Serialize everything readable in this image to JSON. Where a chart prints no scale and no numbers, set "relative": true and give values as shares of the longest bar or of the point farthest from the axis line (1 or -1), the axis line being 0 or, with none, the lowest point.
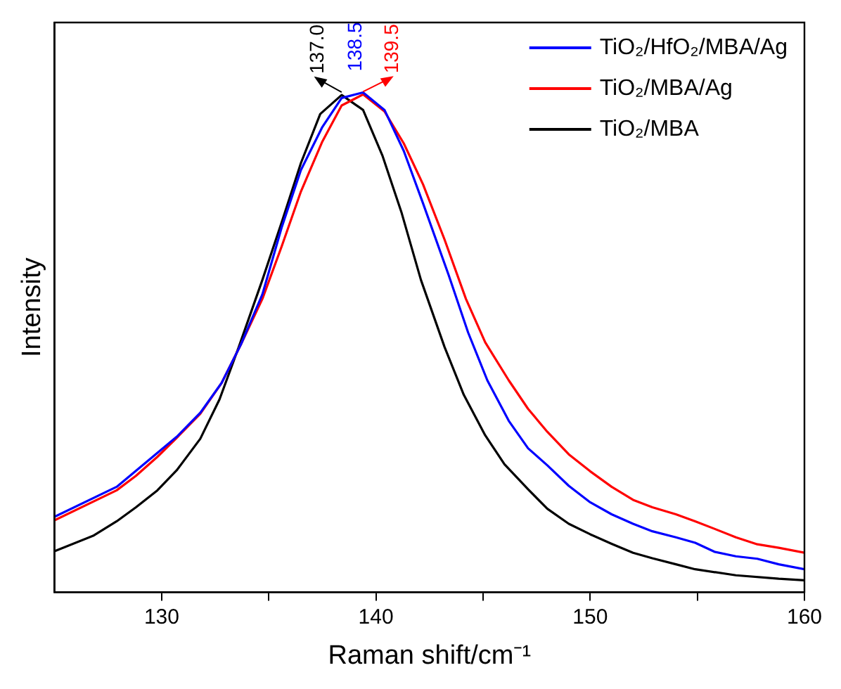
{
  "chart_data": {
    "type": "line",
    "relative": true,
    "xlabel": "Raman shift/cm⁻¹",
    "ylabel": "Intensity",
    "xlim": [
      125,
      160
    ],
    "xticks": [
      {
        "value": 135,
        "label": null
      },
      130,
      140,
      150,
      160,
      {
        "value": 145,
        "label": null
      },
      {
        "value": 155,
        "label": null
      }
    ],
    "grid": false,
    "legend": "top right",
    "marker": "none",
    "line_style": "solid",
    "annotations": [
      "138.5",
      "139.5",
      "137.0"
    ],
    "series": [
      {
        "name": "TiO₂/HfO₂/MBA/Ag",
        "color": "#0000ff",
        "x": [
          125,
          127.9,
          130.7,
          131.8,
          132.8,
          133.7,
          134.7,
          135.6,
          136.5,
          137.5,
          138.4,
          139.4,
          140.4,
          141.3,
          142.2,
          143.4,
          144.3,
          145.2,
          146.2,
          147.1,
          148.0,
          149.0,
          150.0,
          151.0,
          152.0,
          152.9,
          154.0,
          154.9,
          155.8,
          156.8,
          157.8,
          158.8,
          160
        ],
        "values": [
          0.151,
          0.211,
          0.311,
          0.359,
          0.419,
          0.496,
          0.596,
          0.73,
          0.845,
          0.931,
          0.989,
          1.0,
          0.965,
          0.883,
          0.778,
          0.634,
          0.52,
          0.424,
          0.343,
          0.288,
          0.254,
          0.213,
          0.18,
          0.156,
          0.137,
          0.122,
          0.11,
          0.099,
          0.081,
          0.072,
          0.067,
          0.056,
          0.046
        ]
      },
      {
        "name": "TiO₂/MBA/Ag",
        "color": "#ff0000",
        "x": [
          125,
          127.9,
          128.8,
          129.8,
          130.7,
          131.8,
          132.8,
          133.7,
          134.7,
          135.6,
          136.5,
          137.5,
          138.4,
          139.4,
          140.4,
          141.3,
          142.2,
          143.2,
          144.2,
          145.1,
          146.2,
          147.1,
          148.0,
          149.0,
          150.0,
          151.0,
          152.0,
          152.9,
          154.0,
          154.9,
          155.8,
          156.8,
          157.8,
          158.8,
          160
        ],
        "values": [
          0.144,
          0.204,
          0.233,
          0.271,
          0.309,
          0.357,
          0.419,
          0.496,
          0.587,
          0.692,
          0.802,
          0.902,
          0.974,
          0.996,
          0.962,
          0.898,
          0.816,
          0.706,
          0.587,
          0.5,
          0.424,
          0.367,
          0.321,
          0.276,
          0.242,
          0.211,
          0.185,
          0.17,
          0.156,
          0.142,
          0.127,
          0.11,
          0.096,
          0.089,
          0.079
        ]
      },
      {
        "name": "TiO₂/MBA",
        "color": "#000000",
        "x": [
          125,
          126.8,
          127.9,
          128.8,
          129.8,
          130.7,
          131.8,
          132.7,
          133.6,
          134.7,
          135.6,
          136.5,
          137.4,
          138.4,
          139.4,
          140.3,
          141.2,
          142.1,
          143.2,
          144.1,
          145.1,
          146.0,
          147.1,
          148.0,
          149.0,
          150.0,
          151.0,
          152.0,
          152.9,
          154.0,
          154.9,
          156.8,
          158.8,
          160
        ],
        "values": [
          0.082,
          0.113,
          0.142,
          0.17,
          0.204,
          0.244,
          0.307,
          0.386,
          0.491,
          0.625,
          0.74,
          0.859,
          0.957,
          0.995,
          0.965,
          0.874,
          0.759,
          0.625,
          0.491,
          0.395,
          0.314,
          0.256,
          0.206,
          0.167,
          0.137,
          0.116,
          0.097,
          0.079,
          0.068,
          0.056,
          0.046,
          0.034,
          0.027,
          0.024
        ]
      }
    ]
  }
}
